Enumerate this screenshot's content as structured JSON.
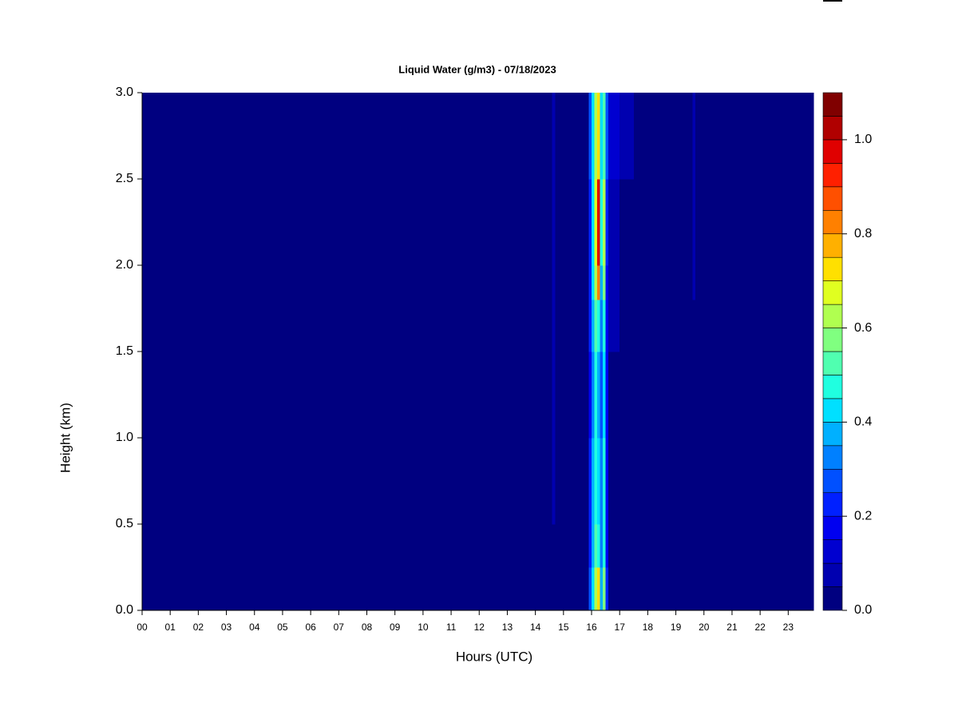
{
  "chart_data": {
    "type": "heatmap",
    "title": "Liquid Water (g/m3) - 07/18/2023",
    "xlabel": "Hours (UTC)",
    "ylabel": "Height (km)",
    "xlim": [
      0,
      23.9
    ],
    "ylim": [
      0,
      3
    ],
    "xticks": [
      {
        "value": 0,
        "label": "00"
      },
      {
        "value": 1,
        "label": "01"
      },
      {
        "value": 2,
        "label": "02"
      },
      {
        "value": 3,
        "label": "03"
      },
      {
        "value": 4,
        "label": "04"
      },
      {
        "value": 5,
        "label": "05"
      },
      {
        "value": 6,
        "label": "06"
      },
      {
        "value": 7,
        "label": "07"
      },
      {
        "value": 8,
        "label": "08"
      },
      {
        "value": 9,
        "label": "09"
      },
      10,
      11,
      12,
      13,
      14,
      15,
      16,
      17,
      18,
      19,
      20,
      21,
      22,
      23
    ],
    "yticks": [
      {
        "value": 0,
        "label": "0.0"
      },
      {
        "value": 0.5,
        "label": "0.5"
      },
      {
        "value": 1,
        "label": "1.0"
      },
      {
        "value": 1.5,
        "label": "1.5"
      },
      {
        "value": 2,
        "label": "2.0"
      },
      {
        "value": 2.5,
        "label": "2.5"
      },
      {
        "value": 3,
        "label": "3.0"
      }
    ],
    "xbins": [
      0,
      14.6,
      14.7,
      15.9,
      16.0,
      16.1,
      16.2,
      16.3,
      16.4,
      16.5,
      16.6,
      17.0,
      17.5,
      19.6,
      19.7,
      23.9
    ],
    "ybins": [
      0,
      0.25,
      0.5,
      1.0,
      1.5,
      1.8,
      2.0,
      2.5,
      3.0
    ],
    "values": [
      [
        0.02,
        0.03,
        0.02,
        0.25,
        0.4,
        0.6,
        0.7,
        0.35,
        0.55,
        0.2,
        0.03,
        0.02,
        0.02,
        0.02,
        0.02
      ],
      [
        0.02,
        0.03,
        0.02,
        0.2,
        0.35,
        0.5,
        0.45,
        0.3,
        0.45,
        0.15,
        0.03,
        0.02,
        0.02,
        0.02,
        0.02
      ],
      [
        0.02,
        0.06,
        0.02,
        0.2,
        0.35,
        0.45,
        0.4,
        0.3,
        0.45,
        0.15,
        0.04,
        0.02,
        0.02,
        0.02,
        0.02
      ],
      [
        0.02,
        0.06,
        0.02,
        0.15,
        0.3,
        0.45,
        0.35,
        0.25,
        0.4,
        0.15,
        0.04,
        0.02,
        0.02,
        0.03,
        0.02
      ],
      [
        0.02,
        0.06,
        0.02,
        0.2,
        0.35,
        0.5,
        0.45,
        0.3,
        0.45,
        0.15,
        0.05,
        0.03,
        0.02,
        0.04,
        0.02
      ],
      [
        0.02,
        0.06,
        0.02,
        0.2,
        0.4,
        0.6,
        0.8,
        0.35,
        0.55,
        0.15,
        0.06,
        0.03,
        0.02,
        0.05,
        0.02
      ],
      [
        0.02,
        0.07,
        0.02,
        0.2,
        0.4,
        0.65,
        0.95,
        0.45,
        0.6,
        0.2,
        0.08,
        0.04,
        0.02,
        0.06,
        0.02
      ],
      [
        0.02,
        0.07,
        0.02,
        0.25,
        0.4,
        0.6,
        0.7,
        0.4,
        0.5,
        0.25,
        0.12,
        0.06,
        0.02,
        0.06,
        0.02
      ]
    ],
    "levels": [
      0,
      0.05,
      0.1,
      0.15,
      0.2,
      0.25,
      0.3,
      0.35,
      0.4,
      0.45,
      0.5,
      0.55,
      0.6,
      0.65,
      0.7,
      0.75,
      0.8,
      0.85,
      0.9,
      0.95,
      1.0,
      1.05,
      1.1
    ],
    "colors": [
      "#000080",
      "#0000B0",
      "#0000D0",
      "#0000F0",
      "#0020FF",
      "#0050FF",
      "#0080FF",
      "#00B0FF",
      "#00E0FF",
      "#20FFE0",
      "#50FFB0",
      "#80FF80",
      "#B0FF50",
      "#E0FF20",
      "#FFE000",
      "#FFB000",
      "#FF8000",
      "#FF5000",
      "#FF2000",
      "#E00000",
      "#B00000",
      "#800000"
    ],
    "cbticks": [
      {
        "value": 0,
        "label": "0.0"
      },
      {
        "value": 0.2,
        "label": "0.2"
      },
      {
        "value": 0.4,
        "label": "0.4"
      },
      {
        "value": 0.6,
        "label": "0.6"
      },
      {
        "value": 0.8,
        "label": "0.8"
      },
      {
        "value": 1,
        "label": "1.0"
      }
    ]
  }
}
